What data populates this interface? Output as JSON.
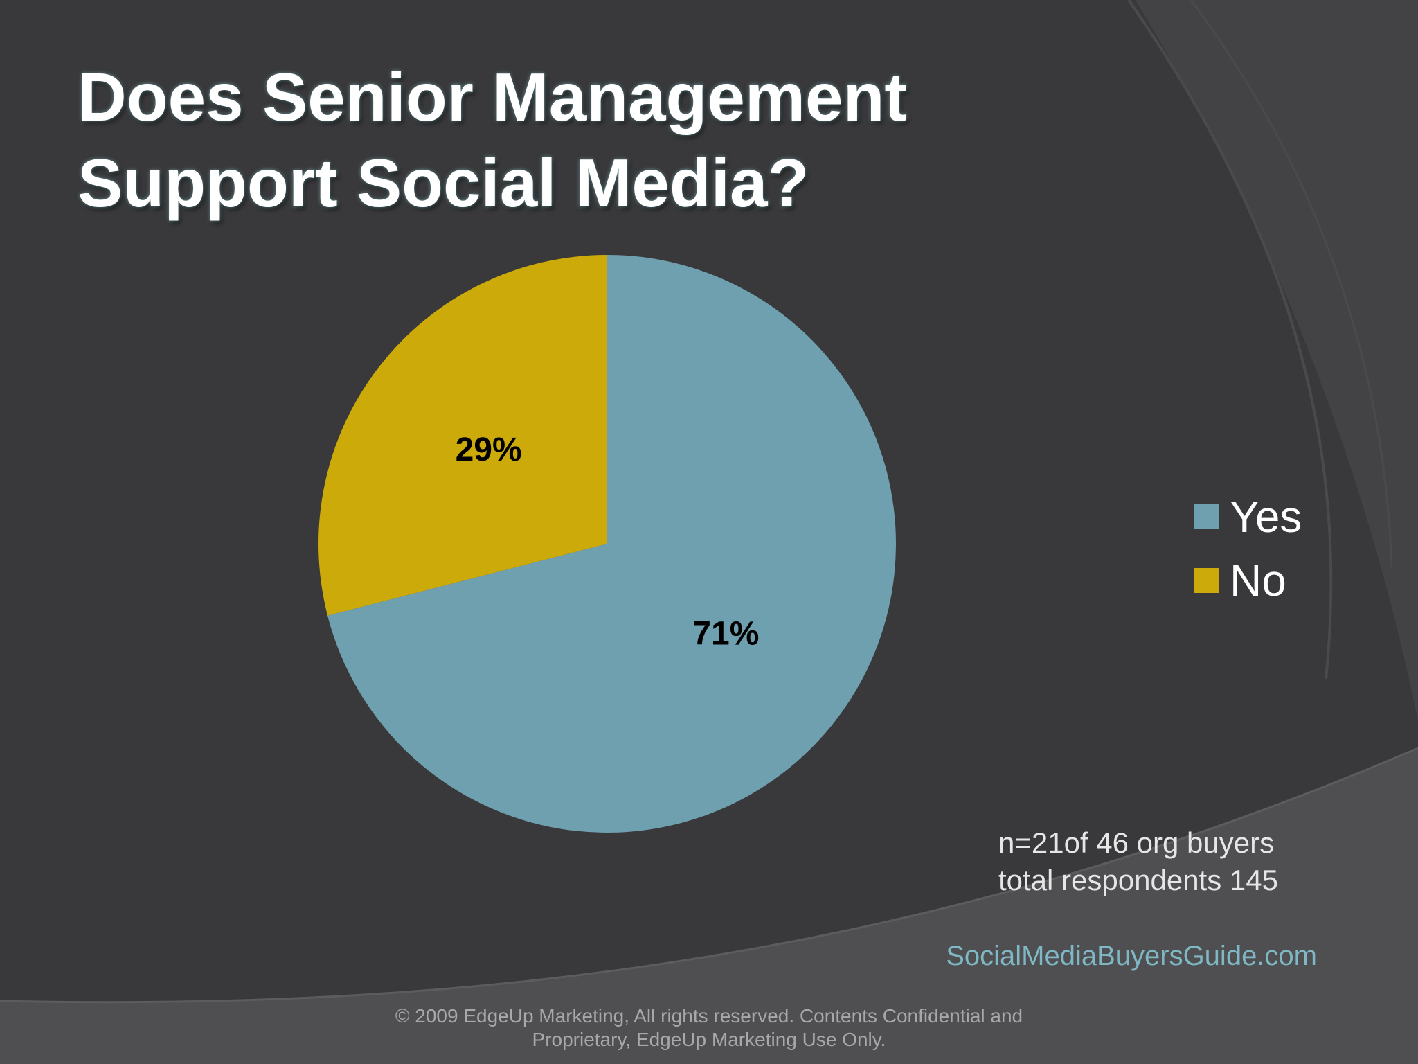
{
  "slide": {
    "title_line1": "Does Senior Management",
    "title_line2": "Support Social Media?",
    "note_line1": "n=21of 46 org buyers",
    "note_line2": "total respondents 145",
    "site": "SocialMediaBuyersGuide.com",
    "footer_line1": "© 2009 EdgeUp Marketing, All rights reserved. Contents Confidential and",
    "footer_line2": "Proprietary, EdgeUp Marketing Use Only."
  },
  "chart_data": {
    "type": "pie",
    "title": "Does Senior Management Support Social Media?",
    "categories": [
      "Yes",
      "No"
    ],
    "values": [
      71,
      29
    ],
    "labels": [
      "71%",
      "29%"
    ],
    "colors": [
      "#6fa0b0",
      "#ccaa0a"
    ],
    "legend_position": "right"
  }
}
